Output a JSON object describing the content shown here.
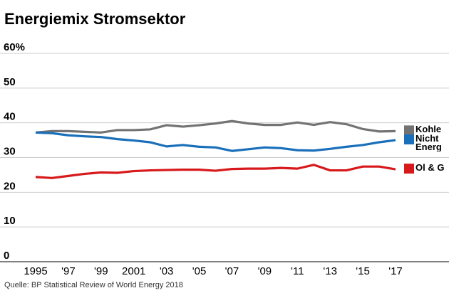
{
  "chart_data": {
    "type": "line",
    "title": "Energiemix Stromsektor",
    "source": "Quelle: BP Statistical Review of World Energy 2018",
    "categories": [
      "1995",
      null,
      "'97",
      null,
      "'99",
      null,
      "2001",
      null,
      "'03",
      null,
      "'05",
      null,
      "'07",
      null,
      "'09",
      null,
      "'11",
      null,
      "'13",
      null,
      "'15",
      null,
      "'17"
    ],
    "series": [
      {
        "name": "Kohle",
        "color": "#737373",
        "values": [
          37.2,
          37.6,
          37.6,
          37.4,
          37.2,
          37.9,
          37.9,
          38.1,
          39.3,
          38.9,
          39.3,
          39.8,
          40.5,
          39.8,
          39.4,
          39.4,
          40.1,
          39.4,
          40.2,
          39.6,
          38.2,
          37.5,
          37.6
        ]
      },
      {
        "name": "Nicht Energ",
        "color": "#1a6fba",
        "values": [
          37.2,
          37.0,
          36.4,
          36.1,
          35.9,
          35.3,
          34.9,
          34.4,
          33.2,
          33.6,
          33.1,
          32.9,
          31.9,
          32.4,
          32.9,
          32.7,
          32.1,
          32.0,
          32.5,
          33.1,
          33.6,
          34.4,
          35.0
        ]
      },
      {
        "name": "Öl & G",
        "color": "#d7191c",
        "values": [
          24.4,
          24.1,
          24.7,
          25.3,
          25.7,
          25.6,
          26.1,
          26.3,
          26.4,
          26.5,
          26.5,
          26.2,
          26.7,
          26.8,
          26.8,
          27.0,
          26.8,
          27.9,
          26.3,
          26.3,
          27.4,
          27.4,
          26.6
        ]
      }
    ],
    "ylim": [
      0,
      60
    ],
    "yticks": [
      0,
      10,
      20,
      30,
      40,
      50,
      {
        "value": 60,
        "label": "60%"
      }
    ],
    "grid": true
  }
}
